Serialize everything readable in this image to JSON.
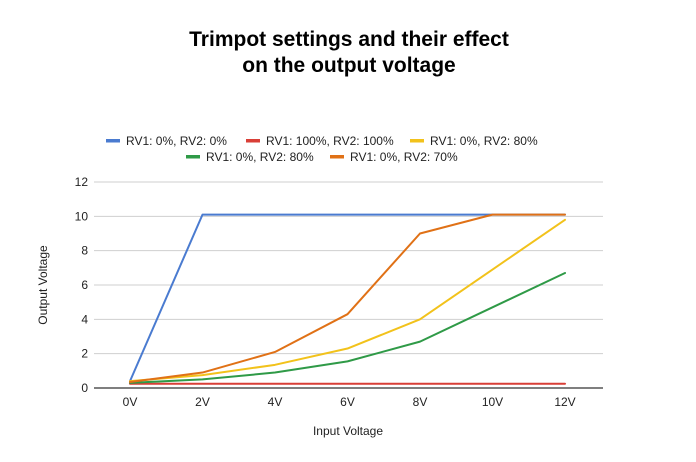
{
  "chart_data": {
    "type": "line",
    "title_lines": [
      "Trimpot settings and their effect",
      "on the output voltage"
    ],
    "xlabel": "Input Voltage",
    "ylabel": "Output Voltage",
    "categories": [
      "0V",
      "2V",
      "4V",
      "6V",
      "8V",
      "10V",
      "12V"
    ],
    "ylim": [
      0,
      12
    ],
    "yticks": [
      0,
      2,
      4,
      6,
      8,
      10,
      12
    ],
    "grid": true,
    "legend_position": "top",
    "series": [
      {
        "name": "RV1: 0%, RV2: 0%",
        "color": "#4a7bd0",
        "values": [
          0.4,
          10.1,
          10.1,
          10.1,
          10.1,
          10.1,
          10.1
        ]
      },
      {
        "name": "RV1: 100%, RV2: 100%",
        "color": "#d93f37",
        "values": [
          0.25,
          0.25,
          0.25,
          0.25,
          0.25,
          0.25,
          0.25
        ]
      },
      {
        "name": "RV1: 0%, RV2: 80%",
        "color": "#f2c21b",
        "values": [
          0.4,
          0.75,
          1.35,
          2.3,
          4.0,
          6.9,
          9.8
        ]
      },
      {
        "name": "RV1: 0%, RV2: 80%",
        "color": "#2f9a47",
        "values": [
          0.3,
          0.5,
          0.9,
          1.55,
          2.7,
          4.7,
          6.7
        ]
      },
      {
        "name": "RV1: 0%, RV2: 70%",
        "color": "#e07116",
        "values": [
          0.35,
          0.9,
          2.1,
          4.3,
          9.0,
          10.1,
          10.1
        ]
      }
    ]
  }
}
